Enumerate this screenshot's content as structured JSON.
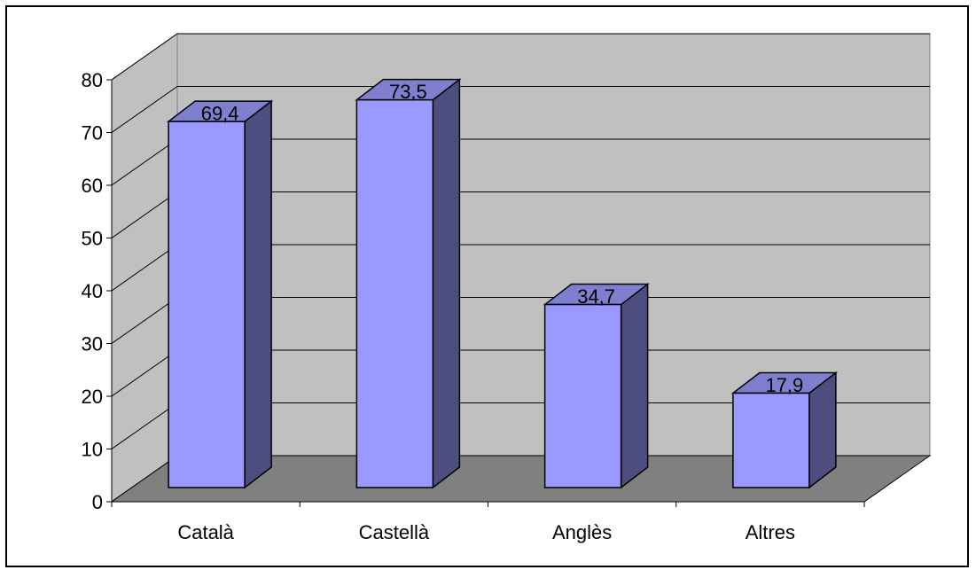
{
  "chart_data": {
    "type": "bar",
    "style": "3d-column",
    "categories": [
      "Català",
      "Castellà",
      "Anglès",
      "Altres"
    ],
    "values": [
      69.4,
      73.5,
      34.7,
      17.9
    ],
    "value_labels": [
      "69,4",
      "73,5",
      "34,7",
      "17,9"
    ],
    "y_ticks": [
      "0",
      "10",
      "20",
      "30",
      "40",
      "50",
      "60",
      "70",
      "80"
    ],
    "ylim": [
      0,
      80
    ],
    "grid": true,
    "legend": "none",
    "colors": {
      "bar_front": "#9999ff",
      "bar_side": "#4d4d80",
      "bar_top": "#7f7fd0",
      "back_wall": "#c0c0c0",
      "side_wall": "#c0c0c0",
      "floor": "#808080",
      "gridline": "#000000"
    }
  }
}
